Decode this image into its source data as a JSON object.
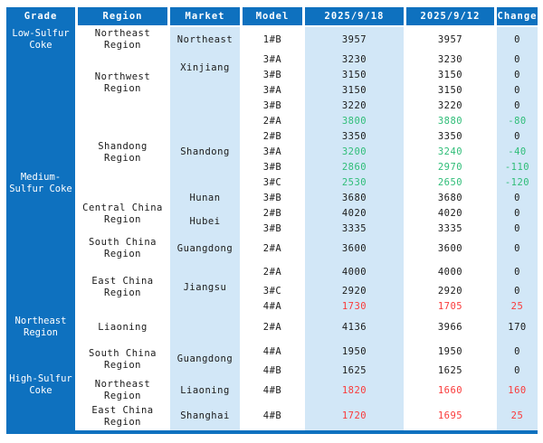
{
  "colors": {
    "header_bg": "#0e71bf",
    "band_light_blue": "#d2e7f7",
    "text": "#1a1a1a",
    "negative_green": "#2fbd78",
    "positive_red": "#fa3a3a"
  },
  "chart_data": {
    "type": "table",
    "columns": [
      "Grade",
      "Region",
      "Market",
      "Model",
      "2025/9/18",
      "2025/9/12",
      "Change"
    ],
    "rows": [
      {
        "model": "1#B",
        "p1": "3957",
        "p2": "3957",
        "chg": "0",
        "color": "black",
        "grade": {
          "label": "Low-Sulfur Coke",
          "span": 1
        },
        "region": {
          "label": "Northeast Region",
          "span": 1
        },
        "market": {
          "label": "Northeast",
          "span": 1
        }
      },
      {
        "model": "3#A",
        "p1": "3230",
        "p2": "3230",
        "chg": "0",
        "color": "black",
        "grade": {
          "label": "Medium-Sulfur Coke",
          "span": 16
        },
        "region": {
          "label": "Northwest Region",
          "span": 4
        },
        "market": {
          "label": "Xinjiang",
          "span": 2
        }
      },
      {
        "model": "3#B",
        "p1": "3150",
        "p2": "3150",
        "chg": "0",
        "color": "black"
      },
      {
        "model": "3#A",
        "p1": "3150",
        "p2": "3150",
        "chg": "0",
        "color": "black",
        "market": {
          "label": "",
          "span": 2
        }
      },
      {
        "model": "3#B",
        "p1": "3220",
        "p2": "3220",
        "chg": "0",
        "color": "black"
      },
      {
        "model": "2#A",
        "p1": "3800",
        "p2": "3880",
        "chg": "-80",
        "color": "green",
        "region": {
          "label": "Shandong Region",
          "span": 5
        },
        "market": {
          "label": "Shandong",
          "span": 5
        }
      },
      {
        "model": "2#B",
        "p1": "3350",
        "p2": "3350",
        "chg": "0",
        "color": "black"
      },
      {
        "model": "3#A",
        "p1": "3200",
        "p2": "3240",
        "chg": "-40",
        "color": "green"
      },
      {
        "model": "3#B",
        "p1": "2860",
        "p2": "2970",
        "chg": "-110",
        "color": "green"
      },
      {
        "model": "3#C",
        "p1": "2530",
        "p2": "2650",
        "chg": "-120",
        "color": "green"
      },
      {
        "model": "3#B",
        "p1": "3680",
        "p2": "3680",
        "chg": "0",
        "color": "black",
        "region": {
          "label": "Central China Region",
          "span": 3
        },
        "market": {
          "label": "Hunan",
          "span": 1
        }
      },
      {
        "model": "2#B",
        "p1": "4020",
        "p2": "4020",
        "chg": "0",
        "color": "black",
        "market": {
          "label": "Hubei",
          "span": 2
        }
      },
      {
        "model": "3#B",
        "p1": "3335",
        "p2": "3335",
        "chg": "0",
        "color": "black"
      },
      {
        "model": "2#A",
        "p1": "3600",
        "p2": "3600",
        "chg": "0",
        "color": "black",
        "region": {
          "label": "South China Region",
          "span": 1
        },
        "market": {
          "label": "Guangdong",
          "span": 1
        }
      },
      {
        "model": "2#A",
        "p1": "4000",
        "p2": "4000",
        "chg": "0",
        "color": "black",
        "region": {
          "label": "East China Region",
          "span": 3
        },
        "market": {
          "label": "Jiangsu",
          "span": 3
        }
      },
      {
        "model": "3#C",
        "p1": "2920",
        "p2": "2920",
        "chg": "0",
        "color": "black"
      },
      {
        "model": "4#A",
        "p1": "1730",
        "p2": "1705",
        "chg": "25",
        "color": "red"
      },
      {
        "model": "2#A",
        "p1": "4136",
        "p2": "3966",
        "chg": "170",
        "color": "black",
        "grade": {
          "label": "Northeast Region",
          "span": 1
        },
        "region": {
          "label": "Liaoning",
          "span": 1
        },
        "market": {
          "label": "",
          "span": 1
        }
      },
      {
        "model": "4#A",
        "p1": "1950",
        "p2": "1950",
        "chg": "0",
        "color": "black",
        "grade": {
          "label": "High-Sulfur Coke",
          "span": 4
        },
        "region": {
          "label": "South China Region",
          "span": 2
        },
        "market": {
          "label": "Guangdong",
          "span": 2
        }
      },
      {
        "model": "4#B",
        "p1": "1625",
        "p2": "1625",
        "chg": "0",
        "color": "black"
      },
      {
        "model": "4#B",
        "p1": "1820",
        "p2": "1660",
        "chg": "160",
        "color": "red",
        "region": {
          "label": "Northeast Region",
          "span": 1
        },
        "market": {
          "label": "Liaoning",
          "span": 1
        }
      },
      {
        "model": "4#B",
        "p1": "1720",
        "p2": "1695",
        "chg": "25",
        "color": "red",
        "region": {
          "label": "East China Region",
          "span": 1
        },
        "market": {
          "label": "Shanghai",
          "span": 1
        }
      }
    ]
  }
}
